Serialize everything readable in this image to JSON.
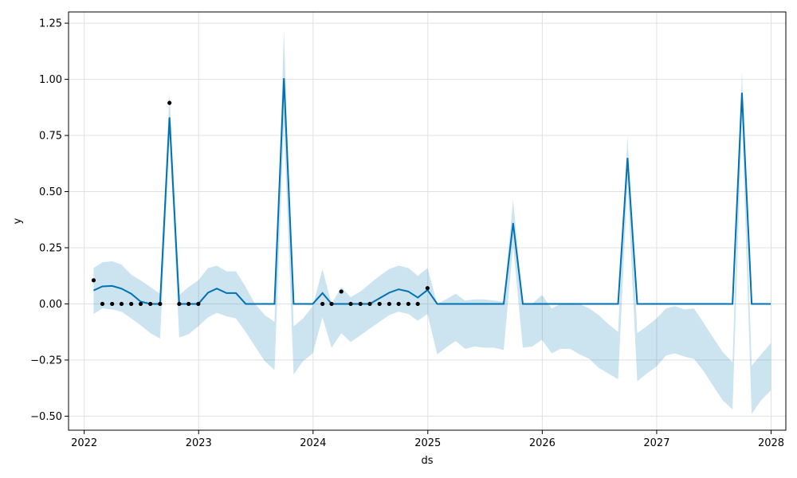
{
  "chart_data": {
    "type": "line",
    "xlabel": "ds",
    "ylabel": "y",
    "xlim": [
      "2021-11-12",
      "2028-02-17"
    ],
    "ylim": [
      -0.5625,
      1.3
    ],
    "grid": true,
    "x_ticks": [
      {
        "value": "2022-01-01",
        "label": "2022"
      },
      {
        "value": "2023-01-01",
        "label": "2023"
      },
      {
        "value": "2024-01-01",
        "label": "2024"
      },
      {
        "value": "2025-01-01",
        "label": "2025"
      },
      {
        "value": "2026-01-01",
        "label": "2026"
      },
      {
        "value": "2027-01-01",
        "label": "2027"
      },
      {
        "value": "2028-01-01",
        "label": "2028"
      }
    ],
    "y_ticks": [
      {
        "value": -0.5,
        "label": "−0.50"
      },
      {
        "value": -0.25,
        "label": "−0.25"
      },
      {
        "value": 0.0,
        "label": "0.00"
      },
      {
        "value": 0.25,
        "label": "0.25"
      },
      {
        "value": 0.5,
        "label": "0.50"
      },
      {
        "value": 0.75,
        "label": "0.75"
      },
      {
        "value": 1.0,
        "label": "1.00"
      },
      {
        "value": 1.25,
        "label": "1.25"
      }
    ],
    "colors": {
      "forecast_line": "#0072B2",
      "uncertainty_band": "#0072B2",
      "observed_points": "#000000",
      "grid": "#e0e0e0"
    },
    "observed": [
      {
        "x": "2022-01-31",
        "y": 0.105
      },
      {
        "x": "2022-02-28",
        "y": 0.0
      },
      {
        "x": "2022-03-31",
        "y": 0.0
      },
      {
        "x": "2022-04-30",
        "y": 0.0
      },
      {
        "x": "2022-05-31",
        "y": 0.0
      },
      {
        "x": "2022-06-30",
        "y": 0.0
      },
      {
        "x": "2022-07-31",
        "y": 0.0
      },
      {
        "x": "2022-08-31",
        "y": 0.0
      },
      {
        "x": "2022-09-30",
        "y": 0.895
      },
      {
        "x": "2022-10-31",
        "y": 0.0
      },
      {
        "x": "2022-11-30",
        "y": 0.0
      },
      {
        "x": "2022-12-31",
        "y": 0.0
      },
      {
        "x": "2024-01-31",
        "y": 0.0
      },
      {
        "x": "2024-02-29",
        "y": 0.0
      },
      {
        "x": "2024-03-31",
        "y": 0.055
      },
      {
        "x": "2024-04-30",
        "y": 0.0
      },
      {
        "x": "2024-05-31",
        "y": 0.0
      },
      {
        "x": "2024-06-30",
        "y": 0.0
      },
      {
        "x": "2024-07-31",
        "y": 0.0
      },
      {
        "x": "2024-08-31",
        "y": 0.0
      },
      {
        "x": "2024-09-30",
        "y": 0.0
      },
      {
        "x": "2024-10-31",
        "y": 0.0
      },
      {
        "x": "2024-11-30",
        "y": 0.0
      },
      {
        "x": "2024-12-31",
        "y": 0.07
      }
    ],
    "forecast": [
      {
        "x": "2022-01-31",
        "yhat": 0.06,
        "lower": -0.045,
        "upper": 0.16
      },
      {
        "x": "2022-02-28",
        "yhat": 0.078,
        "lower": -0.02,
        "upper": 0.185
      },
      {
        "x": "2022-03-31",
        "yhat": 0.08,
        "lower": -0.025,
        "upper": 0.19
      },
      {
        "x": "2022-04-30",
        "yhat": 0.068,
        "lower": -0.035,
        "upper": 0.175
      },
      {
        "x": "2022-05-31",
        "yhat": 0.045,
        "lower": -0.065,
        "upper": 0.13
      },
      {
        "x": "2022-06-30",
        "yhat": 0.01,
        "lower": -0.095,
        "upper": 0.105
      },
      {
        "x": "2022-07-31",
        "yhat": 0.0,
        "lower": -0.13,
        "upper": 0.075
      },
      {
        "x": "2022-08-31",
        "yhat": 0.0,
        "lower": -0.155,
        "upper": 0.045
      },
      {
        "x": "2022-09-30",
        "yhat": 0.83,
        "lower": 0.74,
        "upper": 0.94
      },
      {
        "x": "2022-10-31",
        "yhat": 0.0,
        "lower": -0.15,
        "upper": 0.04
      },
      {
        "x": "2022-11-30",
        "yhat": 0.0,
        "lower": -0.135,
        "upper": 0.075
      },
      {
        "x": "2022-12-31",
        "yhat": 0.0,
        "lower": -0.1,
        "upper": 0.105
      },
      {
        "x": "2023-01-31",
        "yhat": 0.05,
        "lower": -0.06,
        "upper": 0.16
      },
      {
        "x": "2023-02-28",
        "yhat": 0.068,
        "lower": -0.04,
        "upper": 0.17
      },
      {
        "x": "2023-03-31",
        "yhat": 0.048,
        "lower": -0.055,
        "upper": 0.145
      },
      {
        "x": "2023-04-30",
        "yhat": 0.048,
        "lower": -0.065,
        "upper": 0.145
      },
      {
        "x": "2023-05-31",
        "yhat": 0.0,
        "lower": -0.125,
        "upper": 0.075
      },
      {
        "x": "2023-06-30",
        "yhat": 0.0,
        "lower": -0.19,
        "upper": 0.0
      },
      {
        "x": "2023-07-31",
        "yhat": 0.0,
        "lower": -0.255,
        "upper": -0.05
      },
      {
        "x": "2023-08-31",
        "yhat": 0.0,
        "lower": -0.295,
        "upper": -0.08
      },
      {
        "x": "2023-09-30",
        "yhat": 1.005,
        "lower": 0.8,
        "upper": 1.22
      },
      {
        "x": "2023-10-31",
        "yhat": 0.0,
        "lower": -0.315,
        "upper": -0.1
      },
      {
        "x": "2023-11-30",
        "yhat": 0.0,
        "lower": -0.255,
        "upper": -0.065
      },
      {
        "x": "2023-12-31",
        "yhat": 0.0,
        "lower": -0.22,
        "upper": -0.01
      },
      {
        "x": "2024-01-31",
        "yhat": 0.048,
        "lower": -0.06,
        "upper": 0.155
      },
      {
        "x": "2024-02-29",
        "yhat": 0.0,
        "lower": -0.195,
        "upper": 0.0
      },
      {
        "x": "2024-03-31",
        "yhat": 0.0,
        "lower": -0.13,
        "upper": 0.075
      },
      {
        "x": "2024-04-30",
        "yhat": 0.0,
        "lower": -0.17,
        "upper": 0.03
      },
      {
        "x": "2024-05-31",
        "yhat": 0.0,
        "lower": -0.14,
        "upper": 0.055
      },
      {
        "x": "2024-06-30",
        "yhat": 0.0,
        "lower": -0.11,
        "upper": 0.09
      },
      {
        "x": "2024-07-31",
        "yhat": 0.025,
        "lower": -0.08,
        "upper": 0.125
      },
      {
        "x": "2024-08-31",
        "yhat": 0.05,
        "lower": -0.05,
        "upper": 0.155
      },
      {
        "x": "2024-09-30",
        "yhat": 0.065,
        "lower": -0.035,
        "upper": 0.17
      },
      {
        "x": "2024-10-31",
        "yhat": 0.055,
        "lower": -0.045,
        "upper": 0.16
      },
      {
        "x": "2024-11-30",
        "yhat": 0.028,
        "lower": -0.075,
        "upper": 0.125
      },
      {
        "x": "2024-12-31",
        "yhat": 0.062,
        "lower": -0.045,
        "upper": 0.16
      },
      {
        "x": "2025-01-31",
        "yhat": 0.0,
        "lower": -0.225,
        "upper": 0.0
      },
      {
        "x": "2025-02-28",
        "yhat": 0.0,
        "lower": -0.195,
        "upper": 0.02
      },
      {
        "x": "2025-03-31",
        "yhat": 0.0,
        "lower": -0.165,
        "upper": 0.045
      },
      {
        "x": "2025-04-30",
        "yhat": 0.0,
        "lower": -0.2,
        "upper": 0.015
      },
      {
        "x": "2025-05-31",
        "yhat": 0.0,
        "lower": -0.19,
        "upper": 0.02
      },
      {
        "x": "2025-06-30",
        "yhat": 0.0,
        "lower": -0.195,
        "upper": 0.02
      },
      {
        "x": "2025-07-31",
        "yhat": 0.0,
        "lower": -0.195,
        "upper": 0.015
      },
      {
        "x": "2025-08-31",
        "yhat": 0.0,
        "lower": -0.205,
        "upper": 0.01
      },
      {
        "x": "2025-09-30",
        "yhat": 0.36,
        "lower": 0.26,
        "upper": 0.465
      },
      {
        "x": "2025-10-31",
        "yhat": 0.0,
        "lower": -0.195,
        "upper": 0.0
      },
      {
        "x": "2025-11-30",
        "yhat": 0.0,
        "lower": -0.19,
        "upper": 0.0
      },
      {
        "x": "2025-12-31",
        "yhat": 0.0,
        "lower": -0.16,
        "upper": 0.04
      },
      {
        "x": "2026-01-31",
        "yhat": 0.0,
        "lower": -0.22,
        "upper": -0.02
      },
      {
        "x": "2026-02-28",
        "yhat": 0.0,
        "lower": -0.2,
        "upper": 0.0
      },
      {
        "x": "2026-03-31",
        "yhat": 0.0,
        "lower": -0.2,
        "upper": 0.0
      },
      {
        "x": "2026-04-30",
        "yhat": 0.0,
        "lower": -0.225,
        "upper": 0.0
      },
      {
        "x": "2026-05-31",
        "yhat": 0.0,
        "lower": -0.245,
        "upper": -0.02
      },
      {
        "x": "2026-06-30",
        "yhat": 0.0,
        "lower": -0.285,
        "upper": -0.05
      },
      {
        "x": "2026-07-31",
        "yhat": 0.0,
        "lower": -0.31,
        "upper": -0.09
      },
      {
        "x": "2026-08-31",
        "yhat": 0.0,
        "lower": -0.335,
        "upper": -0.125
      },
      {
        "x": "2026-09-30",
        "yhat": 0.65,
        "lower": 0.545,
        "upper": 0.75
      },
      {
        "x": "2026-10-31",
        "yhat": 0.0,
        "lower": -0.345,
        "upper": -0.13
      },
      {
        "x": "2026-11-30",
        "yhat": 0.0,
        "lower": -0.31,
        "upper": -0.1
      },
      {
        "x": "2026-12-31",
        "yhat": 0.0,
        "lower": -0.28,
        "upper": -0.065
      },
      {
        "x": "2027-01-31",
        "yhat": 0.0,
        "lower": -0.23,
        "upper": -0.02
      },
      {
        "x": "2027-02-28",
        "yhat": 0.0,
        "lower": -0.22,
        "upper": -0.01
      },
      {
        "x": "2027-03-31",
        "yhat": 0.0,
        "lower": -0.235,
        "upper": -0.025
      },
      {
        "x": "2027-04-30",
        "yhat": 0.0,
        "lower": -0.245,
        "upper": -0.02
      },
      {
        "x": "2027-05-31",
        "yhat": 0.0,
        "lower": -0.3,
        "upper": -0.085
      },
      {
        "x": "2027-06-30",
        "yhat": 0.0,
        "lower": -0.365,
        "upper": -0.15
      },
      {
        "x": "2027-07-31",
        "yhat": 0.0,
        "lower": -0.43,
        "upper": -0.215
      },
      {
        "x": "2027-08-31",
        "yhat": 0.0,
        "lower": -0.47,
        "upper": -0.26
      },
      {
        "x": "2027-09-30",
        "yhat": 0.94,
        "lower": 0.83,
        "upper": 1.035
      },
      {
        "x": "2027-10-31",
        "yhat": 0.0,
        "lower": -0.49,
        "upper": -0.275
      },
      {
        "x": "2027-11-30",
        "yhat": 0.0,
        "lower": -0.43,
        "upper": -0.225
      },
      {
        "x": "2027-12-31",
        "yhat": 0.0,
        "lower": -0.385,
        "upper": -0.175
      }
    ]
  }
}
